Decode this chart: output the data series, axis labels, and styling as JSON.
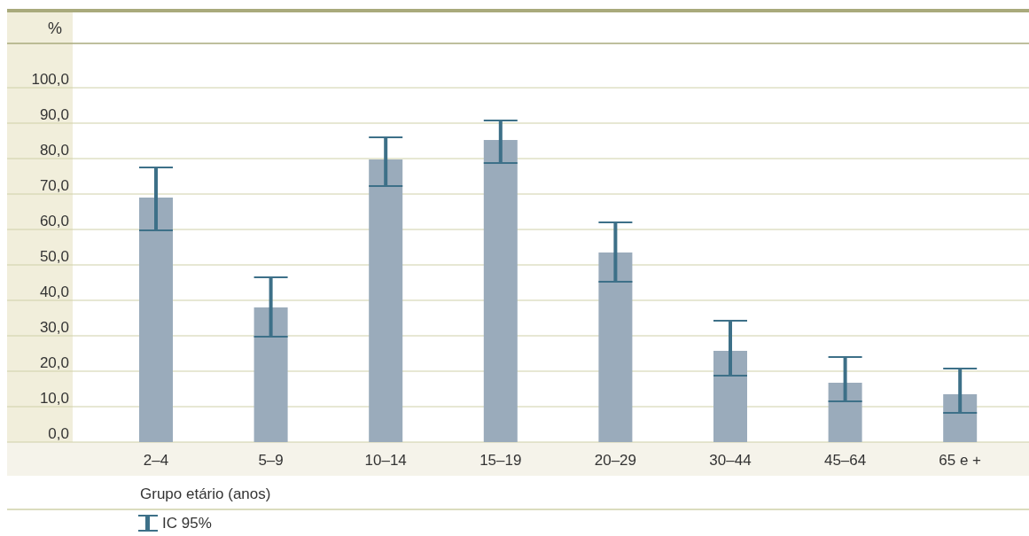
{
  "chart_data": {
    "type": "bar",
    "ylabel": "%",
    "xlabel": "Grupo etário (anos)",
    "categories": [
      "2–4",
      "5–9",
      "10–14",
      "15–19",
      "20–29",
      "30–44",
      "45–64",
      "65 e +"
    ],
    "values": [
      69,
      38,
      79.75,
      85.25,
      53.5,
      25.75,
      16.75,
      13.5
    ],
    "errors": [
      [
        59.75,
        77.5
      ],
      [
        29.75,
        46.5
      ],
      [
        72.25,
        86
      ],
      [
        78.75,
        90.75
      ],
      [
        45.25,
        62
      ],
      [
        18.75,
        34.25
      ],
      [
        11.5,
        24
      ],
      [
        8.25,
        20.75
      ]
    ],
    "color": "#9aabbb",
    "ylim": [
      0,
      100
    ],
    "yticks": [
      {
        "value": 0,
        "label": "0,0"
      },
      {
        "value": 10,
        "label": "10,0"
      },
      {
        "value": 20,
        "label": "20,0"
      },
      {
        "value": 30,
        "label": "30,0"
      },
      {
        "value": 40,
        "label": "40,0"
      },
      {
        "value": 50,
        "label": "50,0"
      },
      {
        "value": 60,
        "label": "60,0"
      },
      {
        "value": 70,
        "label": "70,0"
      },
      {
        "value": 80,
        "label": "80,0"
      },
      {
        "value": 90,
        "label": "90,0"
      },
      {
        "value": 100,
        "label": "100,0"
      }
    ],
    "grid": "y",
    "annotations": [
      "IC 95%"
    ]
  }
}
